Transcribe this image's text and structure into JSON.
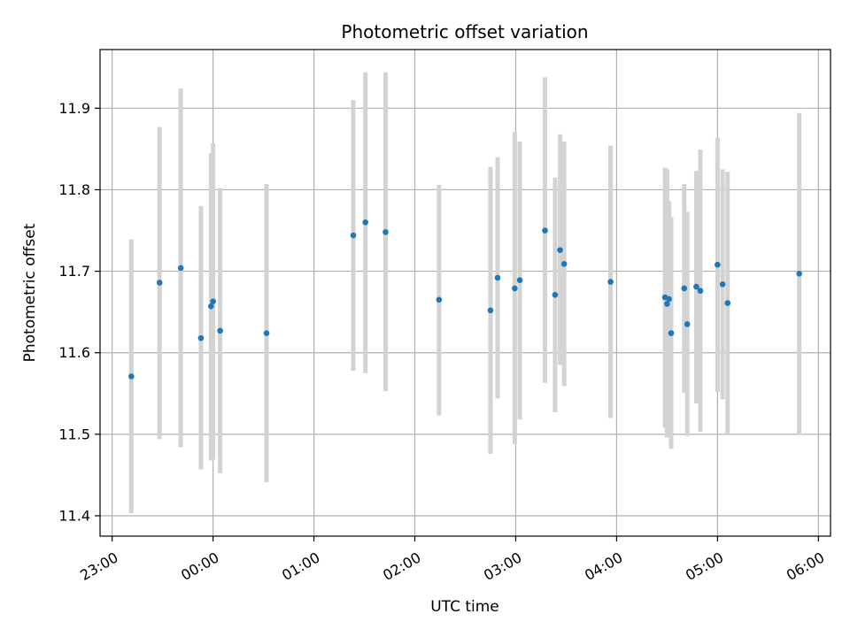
{
  "chart_data": {
    "type": "scatter",
    "title": "Photometric offset variation",
    "xlabel": "UTC time",
    "ylabel": "Photometric offset",
    "x_unit": "hours relative to 00:00 UTC",
    "xlim": [
      -1.12,
      6.12
    ],
    "ylim": [
      11.375,
      11.972
    ],
    "grid": true,
    "xticks": [
      {
        "value": -1,
        "label": "23:00"
      },
      {
        "value": 0,
        "label": "00:00"
      },
      {
        "value": 1,
        "label": "01:00"
      },
      {
        "value": 2,
        "label": "02:00"
      },
      {
        "value": 3,
        "label": "03:00"
      },
      {
        "value": 4,
        "label": "04:00"
      },
      {
        "value": 5,
        "label": "05:00"
      },
      {
        "value": 6,
        "label": "06:00"
      }
    ],
    "yticks": [
      {
        "value": 11.4,
        "label": "11.4"
      },
      {
        "value": 11.5,
        "label": "11.5"
      },
      {
        "value": 11.6,
        "label": "11.6"
      },
      {
        "value": 11.7,
        "label": "11.7"
      },
      {
        "value": 11.8,
        "label": "11.8"
      },
      {
        "value": 11.9,
        "label": "11.9"
      }
    ],
    "point_color": "#1f77b4",
    "errorbar_color": "#d3d3d3",
    "points": [
      {
        "x": -0.81,
        "y": 11.571,
        "lo": 11.403,
        "hi": 11.739
      },
      {
        "x": -0.53,
        "y": 11.686,
        "lo": 11.494,
        "hi": 11.877
      },
      {
        "x": -0.32,
        "y": 11.704,
        "lo": 11.484,
        "hi": 11.924
      },
      {
        "x": -0.12,
        "y": 11.618,
        "lo": 11.457,
        "hi": 11.78
      },
      {
        "x": -0.02,
        "y": 11.657,
        "lo": 11.468,
        "hi": 11.845
      },
      {
        "x": 0.0,
        "y": 11.663,
        "lo": 11.469,
        "hi": 11.857
      },
      {
        "x": 0.07,
        "y": 11.627,
        "lo": 11.452,
        "hi": 11.802
      },
      {
        "x": 0.53,
        "y": 11.624,
        "lo": 11.441,
        "hi": 11.807
      },
      {
        "x": 1.39,
        "y": 11.744,
        "lo": 11.578,
        "hi": 11.91
      },
      {
        "x": 1.51,
        "y": 11.76,
        "lo": 11.575,
        "hi": 11.944
      },
      {
        "x": 1.71,
        "y": 11.748,
        "lo": 11.553,
        "hi": 11.944
      },
      {
        "x": 2.24,
        "y": 11.665,
        "lo": 11.523,
        "hi": 11.806
      },
      {
        "x": 2.75,
        "y": 11.652,
        "lo": 11.476,
        "hi": 11.828
      },
      {
        "x": 2.82,
        "y": 11.692,
        "lo": 11.544,
        "hi": 11.84
      },
      {
        "x": 2.99,
        "y": 11.679,
        "lo": 11.488,
        "hi": 11.871
      },
      {
        "x": 3.04,
        "y": 11.689,
        "lo": 11.518,
        "hi": 11.859
      },
      {
        "x": 3.29,
        "y": 11.75,
        "lo": 11.563,
        "hi": 11.938
      },
      {
        "x": 3.39,
        "y": 11.671,
        "lo": 11.527,
        "hi": 11.815
      },
      {
        "x": 3.44,
        "y": 11.726,
        "lo": 11.585,
        "hi": 11.868
      },
      {
        "x": 3.48,
        "y": 11.709,
        "lo": 11.559,
        "hi": 11.859
      },
      {
        "x": 3.94,
        "y": 11.687,
        "lo": 11.52,
        "hi": 11.854
      },
      {
        "x": 4.48,
        "y": 11.668,
        "lo": 11.508,
        "hi": 11.827
      },
      {
        "x": 4.5,
        "y": 11.66,
        "lo": 11.496,
        "hi": 11.825
      },
      {
        "x": 4.52,
        "y": 11.666,
        "lo": 11.54,
        "hi": 11.786
      },
      {
        "x": 4.54,
        "y": 11.624,
        "lo": 11.482,
        "hi": 11.766
      },
      {
        "x": 4.67,
        "y": 11.679,
        "lo": 11.551,
        "hi": 11.807
      },
      {
        "x": 4.7,
        "y": 11.635,
        "lo": 11.498,
        "hi": 11.773
      },
      {
        "x": 4.79,
        "y": 11.681,
        "lo": 11.538,
        "hi": 11.823
      },
      {
        "x": 4.83,
        "y": 11.676,
        "lo": 11.503,
        "hi": 11.849
      },
      {
        "x": 5.0,
        "y": 11.708,
        "lo": 11.552,
        "hi": 11.864
      },
      {
        "x": 5.05,
        "y": 11.684,
        "lo": 11.543,
        "hi": 11.825
      },
      {
        "x": 5.1,
        "y": 11.661,
        "lo": 11.5,
        "hi": 11.822
      },
      {
        "x": 5.81,
        "y": 11.697,
        "lo": 11.499,
        "hi": 11.894
      }
    ]
  }
}
